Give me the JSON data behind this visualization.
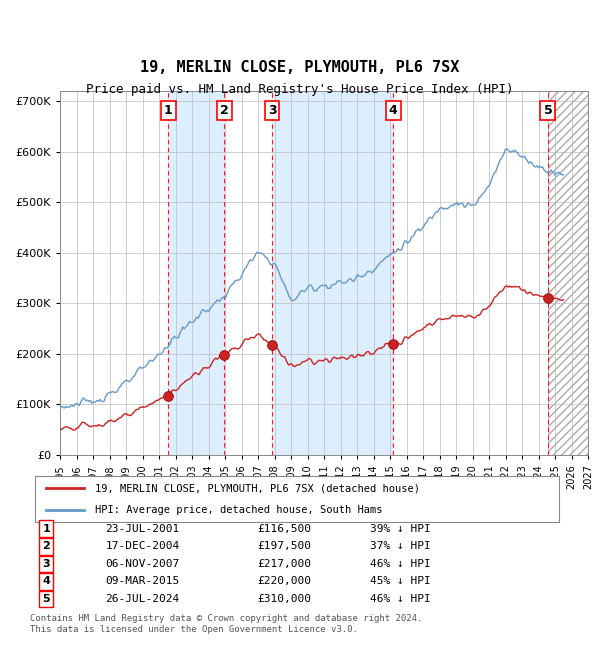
{
  "title": "19, MERLIN CLOSE, PLYMOUTH, PL6 7SX",
  "subtitle": "Price paid vs. HM Land Registry's House Price Index (HPI)",
  "sales": [
    {
      "num": 1,
      "date_label": "23-JUL-2001",
      "date_x": 2001.55,
      "price": 116500,
      "hpi_pct": "39% ↓ HPI"
    },
    {
      "num": 2,
      "date_label": "17-DEC-2004",
      "date_x": 2004.96,
      "price": 197500,
      "hpi_pct": "37% ↓ HPI"
    },
    {
      "num": 3,
      "date_label": "06-NOV-2007",
      "date_x": 2007.85,
      "price": 217000,
      "hpi_pct": "46% ↓ HPI"
    },
    {
      "num": 4,
      "date_label": "09-MAR-2015",
      "date_x": 2015.19,
      "price": 220000,
      "hpi_pct": "45% ↓ HPI"
    },
    {
      "num": 5,
      "date_label": "26-JUL-2024",
      "date_x": 2024.57,
      "price": 310000,
      "hpi_pct": "46% ↓ HPI"
    }
  ],
  "xlim": [
    1995.0,
    2027.0
  ],
  "ylim": [
    0,
    720000
  ],
  "yticks": [
    0,
    100000,
    200000,
    300000,
    400000,
    500000,
    600000,
    700000
  ],
  "ytick_labels": [
    "£0",
    "£100K",
    "£200K",
    "£300K",
    "£400K",
    "£500K",
    "£600K",
    "£700K"
  ],
  "hpi_color": "#6699cc",
  "price_color": "#cc2222",
  "bg_color": "#ddeeff",
  "hatch_color": "#cccccc",
  "grid_color": "#bbbbbb",
  "footnote": "Contains HM Land Registry data © Crown copyright and database right 2024.\nThis data is licensed under the Open Government Licence v3.0.",
  "legend_line1": "19, MERLIN CLOSE, PLYMOUTH, PL6 7SX (detached house)",
  "legend_line2": "HPI: Average price, detached house, South Hams"
}
